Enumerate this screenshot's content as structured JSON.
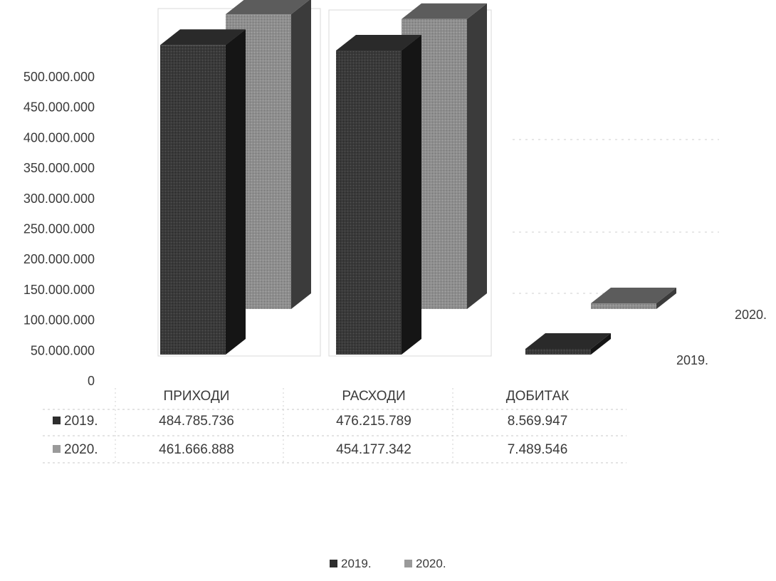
{
  "chart_data": {
    "type": "bar",
    "categories": [
      "ПРИХОДИ",
      "РАСХОДИ",
      "ДОБИТАК"
    ],
    "series": [
      {
        "name": "2019.",
        "values": [
          484785736,
          476215789,
          8569947
        ],
        "color": "#3b3b3b"
      },
      {
        "name": "2020.",
        "values": [
          461666888,
          454177342,
          7489546
        ],
        "color": "#8f8f8f"
      }
    ],
    "value_labels": [
      [
        "484.785.736",
        "476.215.789",
        "8.569.947"
      ],
      [
        "461.666.888",
        "454.177.342",
        "7.489.546"
      ]
    ],
    "ylim": [
      0,
      500000000
    ],
    "yticks": [
      "0",
      "50.000.000",
      "100.000.000",
      "150.000.000",
      "200.000.000",
      "250.000.000",
      "300.000.000",
      "350.000.000",
      "400.000.000",
      "450.000.000",
      "500.000.000"
    ],
    "legend": [
      "2019.",
      "2020."
    ],
    "legend_position": "bottom",
    "data_table": true,
    "three_d": true
  }
}
